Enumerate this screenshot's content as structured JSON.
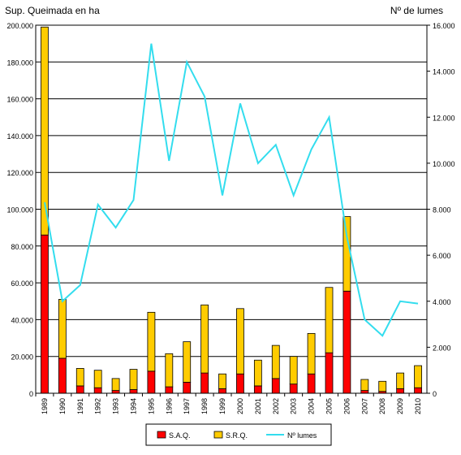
{
  "chart_data": {
    "type": "bar",
    "subtype": "stacked bar with line on secondary axis",
    "left_axis_title": "Sup. Queimada en ha",
    "right_axis_title": "Nº de lumes",
    "categories": [
      "1989",
      "1990",
      "1991",
      "1992",
      "1993",
      "1994",
      "1995",
      "1996",
      "1997",
      "1998",
      "1999",
      "2000",
      "2001",
      "2002",
      "2003",
      "2004",
      "2005",
      "2006",
      "2007",
      "2008",
      "2009",
      "2010"
    ],
    "series": [
      {
        "name": "S.A.Q.",
        "kind": "bar",
        "axis": "left",
        "color": "#ff0000",
        "values": [
          86000,
          19000,
          4000,
          3000,
          1500,
          2000,
          12000,
          3500,
          6000,
          11000,
          2500,
          10500,
          4000,
          8000,
          5000,
          10500,
          22000,
          55500,
          1500,
          1000,
          2500,
          3000
        ]
      },
      {
        "name": "S.R.Q.",
        "kind": "bar",
        "axis": "left",
        "color": "#ffcc00",
        "values": [
          113000,
          32000,
          9500,
          9500,
          6500,
          11000,
          32000,
          18000,
          22000,
          37000,
          8000,
          35500,
          14000,
          18000,
          15000,
          22000,
          35500,
          40500,
          6000,
          5500,
          8500,
          12000
        ]
      },
      {
        "name": "Nº lumes",
        "kind": "line",
        "axis": "right",
        "color": "#33ddee",
        "values": [
          8300,
          4000,
          4700,
          8200,
          7200,
          8400,
          15200,
          10100,
          14400,
          12900,
          8600,
          12600,
          10000,
          10800,
          8600,
          10600,
          12000,
          6800,
          3200,
          2500,
          4000,
          3900
        ]
      }
    ],
    "left_axis": {
      "ylim": [
        0,
        200000
      ],
      "ticks": [
        "0",
        "20.000",
        "40.000",
        "60.000",
        "80.000",
        "100.000",
        "120.000",
        "140.000",
        "160.000",
        "180.000",
        "200.000"
      ]
    },
    "right_axis": {
      "ylim": [
        0,
        16000
      ],
      "ticks": [
        "0",
        "2.000",
        "4.000",
        "6.000",
        "8.000",
        "10.000",
        "12.000",
        "14.000",
        "16.000"
      ]
    },
    "grid": true,
    "legend_position": "bottom",
    "colors": {
      "border": "#000000",
      "background": "#ffffff"
    }
  }
}
